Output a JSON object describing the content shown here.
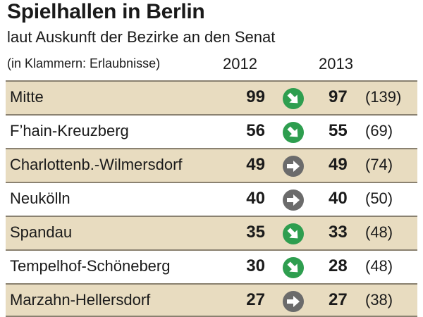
{
  "header": {
    "title": "Spielhallen in Berlin",
    "subtitle": "laut Auskunft der Bezirke an den Senat",
    "note": "(in Klammern: Erlaubnisse)",
    "year_2012": "2012",
    "year_2013": "2013"
  },
  "colors": {
    "down": "#2e9e4f",
    "same": "#6b6b6b",
    "shade": "#e8dcc0"
  },
  "chart_data": {
    "type": "table",
    "title": "Spielhallen in Berlin",
    "subtitle": "laut Auskunft der Bezirke an den Senat",
    "columns": [
      "2012",
      "2013",
      "(in Klammern: Erlaubnisse)"
    ],
    "rows": [
      {
        "name": "Mitte",
        "v2012": "99",
        "v2013": "97",
        "permits": "(139)",
        "trend": "down"
      },
      {
        "name": "F’hain-Kreuzberg",
        "v2012": "56",
        "v2013": "55",
        "permits": "(69)",
        "trend": "down"
      },
      {
        "name": "Charlottenb.-Wilmersdorf",
        "v2012": "49",
        "v2013": "49",
        "permits": "(74)",
        "trend": "same"
      },
      {
        "name": "Neukölln",
        "v2012": "40",
        "v2013": "40",
        "permits": "(50)",
        "trend": "same"
      },
      {
        "name": "Spandau",
        "v2012": "35",
        "v2013": "33",
        "permits": "(48)",
        "trend": "down"
      },
      {
        "name": "Tempelhof-Schöneberg",
        "v2012": "30",
        "v2013": "28",
        "permits": "(48)",
        "trend": "down"
      },
      {
        "name": "Marzahn-Hellersdorf",
        "v2012": "27",
        "v2013": "27",
        "permits": "(38)",
        "trend": "same"
      }
    ]
  }
}
